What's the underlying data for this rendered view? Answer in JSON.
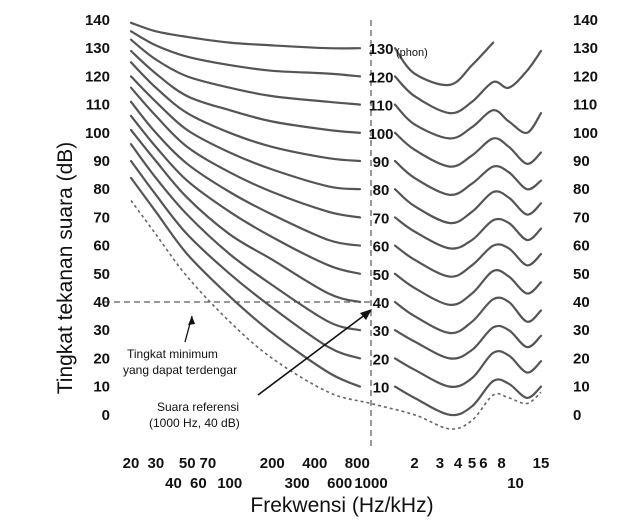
{
  "chart_data": {
    "type": "line",
    "title": "",
    "xlabel": "Frekwensi  (Hz/kHz)",
    "ylabel": "Tingkat  tekanan suara  (dB)",
    "ylim": [
      -10,
      140
    ],
    "y_ticks": [
      "140",
      "130",
      "120",
      "110",
      "100",
      "90",
      "80",
      "70",
      "60",
      "50",
      "40",
      "30",
      "20",
      "10",
      "0"
    ],
    "x_ticks_top": [
      "20",
      "30",
      "50",
      "70",
      "200",
      "400",
      "800",
      "2",
      "3",
      "4",
      "5",
      "6",
      "8",
      "15"
    ],
    "x_ticks_bottom": [
      "40",
      "60",
      "100",
      "300",
      "600",
      "1000",
      "10"
    ],
    "phon_labels": [
      "130",
      "120",
      "110",
      "100",
      "90",
      "80",
      "70",
      "60",
      "50",
      "40",
      "30",
      "20",
      "10"
    ],
    "phon_unit": "(phon)",
    "freq_hz": [
      20,
      30,
      50,
      100,
      200,
      500,
      1000,
      2000,
      3500,
      5000,
      7000,
      9000,
      12000,
      15000
    ],
    "series": [
      {
        "name": "130",
        "values": [
          139,
          136,
          134,
          132,
          131,
          130,
          130,
          121,
          117,
          124,
          132,
          null,
          null,
          null
        ]
      },
      {
        "name": "120",
        "values": [
          136,
          131,
          127,
          124,
          122,
          121,
          120,
          113,
          107,
          111,
          118,
          116,
          122,
          129
        ]
      },
      {
        "name": "110",
        "values": [
          133,
          126,
          120,
          116,
          113,
          111,
          110,
          103,
          98,
          102,
          108,
          104,
          100,
          107
        ]
      },
      {
        "name": "100",
        "values": [
          129,
          121,
          113,
          108,
          104,
          101,
          100,
          94,
          88,
          92,
          98,
          95,
          89,
          93
        ]
      },
      {
        "name": "90",
        "values": [
          125,
          116,
          107,
          100,
          95,
          91,
          90,
          84,
          78,
          82,
          88,
          86,
          80,
          83
        ]
      },
      {
        "name": "80",
        "values": [
          120,
          111,
          101,
          93,
          87,
          81,
          80,
          74,
          68,
          72,
          79,
          77,
          71,
          75
        ]
      },
      {
        "name": "70",
        "values": [
          116,
          106,
          95,
          86,
          79,
          72,
          70,
          65,
          59,
          62,
          69,
          68,
          62,
          66
        ]
      },
      {
        "name": "60",
        "values": [
          111,
          100,
          89,
          79,
          71,
          62,
          60,
          55,
          49,
          53,
          60,
          59,
          53,
          57
        ]
      },
      {
        "name": "50",
        "values": [
          106,
          95,
          83,
          72,
          63,
          53,
          50,
          45,
          39,
          43,
          51,
          49,
          43,
          47
        ]
      },
      {
        "name": "40",
        "values": [
          101,
          90,
          77,
          64,
          55,
          43,
          40,
          35,
          29,
          33,
          41,
          40,
          33,
          37
        ]
      },
      {
        "name": "30",
        "values": [
          96,
          84,
          71,
          57,
          46,
          33,
          30,
          26,
          20,
          23,
          31,
          30,
          24,
          28
        ]
      },
      {
        "name": "20",
        "values": [
          90,
          78,
          64,
          50,
          38,
          24,
          20,
          16,
          10,
          13,
          22,
          21,
          15,
          19
        ]
      },
      {
        "name": "10",
        "values": [
          84,
          72,
          57,
          42,
          29,
          15,
          10,
          6,
          0,
          3,
          12,
          11,
          6,
          10
        ]
      }
    ],
    "threshold": {
      "name": "Tingkat minimum yang dapat terdengar",
      "freq_hz": [
        20,
        30,
        50,
        100,
        200,
        500,
        1000,
        2000,
        3500,
        5000,
        7000,
        9000,
        12000,
        15000
      ],
      "values": [
        76,
        64,
        49,
        33,
        20,
        8,
        4,
        0,
        -5,
        -2,
        7,
        6,
        4,
        8
      ]
    },
    "reference": {
      "freq_hz": 1000,
      "db": 40
    },
    "annotations": {
      "threshold_line1": "Tingkat minimum",
      "threshold_line2": "yang dapat terdengar",
      "ref_line1": "Suara referensi",
      "ref_line2": "(1000 Hz, 40 dB)"
    }
  }
}
